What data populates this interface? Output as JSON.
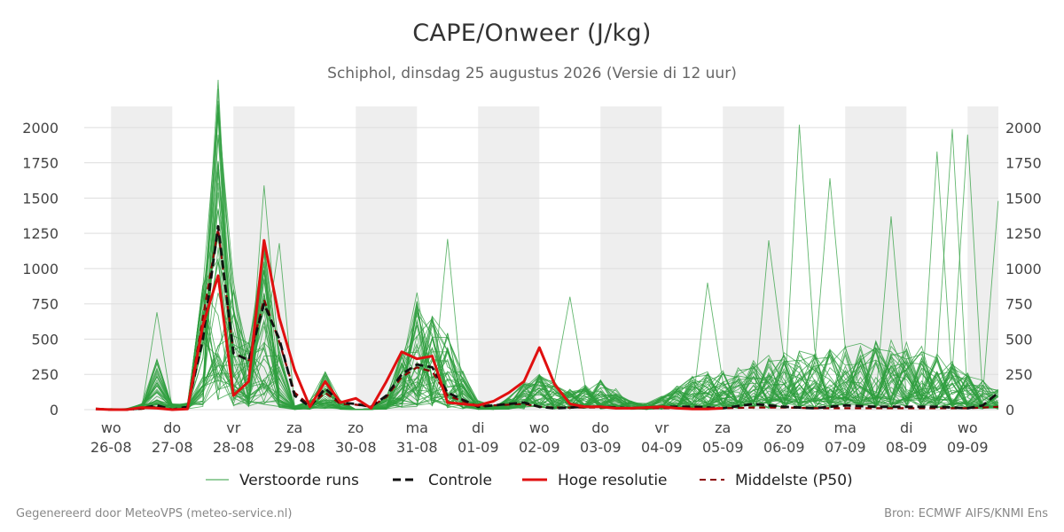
{
  "title": "CAPE/Onweer (J/kg)",
  "subtitle": "Schiphol, dinsdag 25 augustus 2026 (Versie di 12 uur)",
  "footer": {
    "left": "Gegenereerd door MeteoVPS (meteo-service.nl)",
    "right": "Bron: ECMWF AIFS/KNMI Ens"
  },
  "colors": {
    "ensemble": "#2e9e3e",
    "control": "#111111",
    "hires": "#e01010",
    "median": "#8b0000",
    "band": "#eeeeee",
    "grid": "#dddddd"
  },
  "chart_data": {
    "type": "line",
    "ylim": [
      0,
      2150
    ],
    "yticks": [
      0,
      250,
      500,
      750,
      1000,
      1250,
      1500,
      1750,
      2000
    ],
    "x_day_range": [
      -0.25,
      14.5
    ],
    "day_labels": [
      {
        "day": "wo",
        "date": "26-08"
      },
      {
        "day": "do",
        "date": "27-08"
      },
      {
        "day": "vr",
        "date": "28-08"
      },
      {
        "day": "za",
        "date": "29-08"
      },
      {
        "day": "zo",
        "date": "30-08"
      },
      {
        "day": "ma",
        "date": "31-08"
      },
      {
        "day": "di",
        "date": "01-09"
      },
      {
        "day": "wo",
        "date": "02-09"
      },
      {
        "day": "do",
        "date": "03-09"
      },
      {
        "day": "vr",
        "date": "04-09"
      },
      {
        "day": "za",
        "date": "05-09"
      },
      {
        "day": "zo",
        "date": "06-09"
      },
      {
        "day": "ma",
        "date": "07-09"
      },
      {
        "day": "di",
        "date": "08-09"
      },
      {
        "day": "wo",
        "date": "09-09"
      }
    ],
    "legend": {
      "position": "bottom",
      "ensemble": "Verstoorde runs",
      "control": "Controle",
      "hires": "Hoge resolutie",
      "median": "Middelste (P50)"
    },
    "hires_series": {
      "name": "Hoge resolutie",
      "x": [
        -0.25,
        0,
        0.25,
        0.5,
        0.75,
        1,
        1.25,
        1.5,
        1.75,
        2,
        2.25,
        2.5,
        2.75,
        3,
        3.25,
        3.5,
        3.75,
        4,
        4.25,
        4.5,
        4.75,
        5,
        5.25,
        5.5,
        5.75,
        6,
        6.25,
        6.5,
        6.75,
        7,
        7.25,
        7.5,
        7.75,
        8,
        8.25,
        8.5,
        8.75,
        9,
        9.25,
        9.5,
        9.75,
        10
      ],
      "values": [
        5,
        0,
        0,
        15,
        10,
        0,
        5,
        600,
        950,
        100,
        200,
        1200,
        650,
        280,
        20,
        200,
        50,
        80,
        10,
        200,
        410,
        360,
        380,
        50,
        40,
        30,
        60,
        120,
        200,
        440,
        180,
        40,
        20,
        20,
        10,
        10,
        15,
        20,
        10,
        5,
        5,
        10
      ]
    },
    "control_series": {
      "name": "Controle",
      "x": [
        -0.25,
        0,
        0.25,
        0.5,
        0.75,
        1,
        1.25,
        1.5,
        1.75,
        2,
        2.25,
        2.5,
        2.75,
        3,
        3.25,
        3.5,
        3.75,
        4,
        4.25,
        4.5,
        4.75,
        5,
        5.25,
        5.5,
        5.75,
        6,
        6.25,
        6.5,
        6.75,
        7,
        7.25,
        7.5,
        7.75,
        8,
        8.5,
        9,
        9.5,
        10,
        10.5,
        11,
        11.5,
        12,
        12.5,
        13,
        13.5,
        14,
        14.25,
        14.5
      ],
      "values": [
        5,
        0,
        0,
        10,
        30,
        0,
        20,
        500,
        1300,
        400,
        350,
        750,
        500,
        100,
        20,
        150,
        50,
        40,
        20,
        100,
        250,
        320,
        300,
        120,
        70,
        20,
        30,
        40,
        50,
        20,
        10,
        15,
        20,
        20,
        10,
        20,
        20,
        10,
        40,
        20,
        10,
        30,
        20,
        20,
        20,
        10,
        30,
        120
      ]
    },
    "median_series": {
      "name": "Middelste (P50)",
      "x": [
        -0.25,
        0,
        0.25,
        0.5,
        0.75,
        1,
        1.25,
        1.5,
        1.75,
        2,
        2.25,
        2.5,
        2.75,
        3,
        3.25,
        3.5,
        3.75,
        4,
        4.25,
        4.5,
        4.75,
        5,
        5.25,
        5.5,
        5.75,
        6,
        6.25,
        6.5,
        6.75,
        7,
        7.25,
        7.5,
        8,
        8.5,
        9,
        9.5,
        10,
        10.5,
        11,
        11.5,
        12,
        12.5,
        13,
        13.5,
        14,
        14.5
      ],
      "values": [
        5,
        0,
        0,
        5,
        20,
        0,
        10,
        650,
        1280,
        400,
        350,
        780,
        480,
        120,
        30,
        120,
        40,
        35,
        20,
        90,
        230,
        300,
        270,
        100,
        60,
        25,
        30,
        35,
        40,
        20,
        15,
        15,
        15,
        10,
        10,
        10,
        10,
        15,
        15,
        10,
        10,
        10,
        10,
        10,
        10,
        20
      ]
    },
    "ensemble_peaks": [
      {
        "x": 0.75,
        "value": 690
      },
      {
        "x": 1.75,
        "value": 2150
      },
      {
        "x": 1.75,
        "value": 1950
      },
      {
        "x": 2.5,
        "value": 1590
      },
      {
        "x": 2.75,
        "value": 1180
      },
      {
        "x": 5,
        "value": 830
      },
      {
        "x": 5.5,
        "value": 1210
      },
      {
        "x": 7.5,
        "value": 800
      },
      {
        "x": 9.75,
        "value": 900
      },
      {
        "x": 10.75,
        "value": 1200
      },
      {
        "x": 11.25,
        "value": 2020
      },
      {
        "x": 11.75,
        "value": 1640
      },
      {
        "x": 12.75,
        "value": 1370
      },
      {
        "x": 13.5,
        "value": 1830
      },
      {
        "x": 13.75,
        "value": 1990
      },
      {
        "x": 14,
        "value": 1950
      },
      {
        "x": 14.5,
        "value": 1480
      }
    ]
  }
}
